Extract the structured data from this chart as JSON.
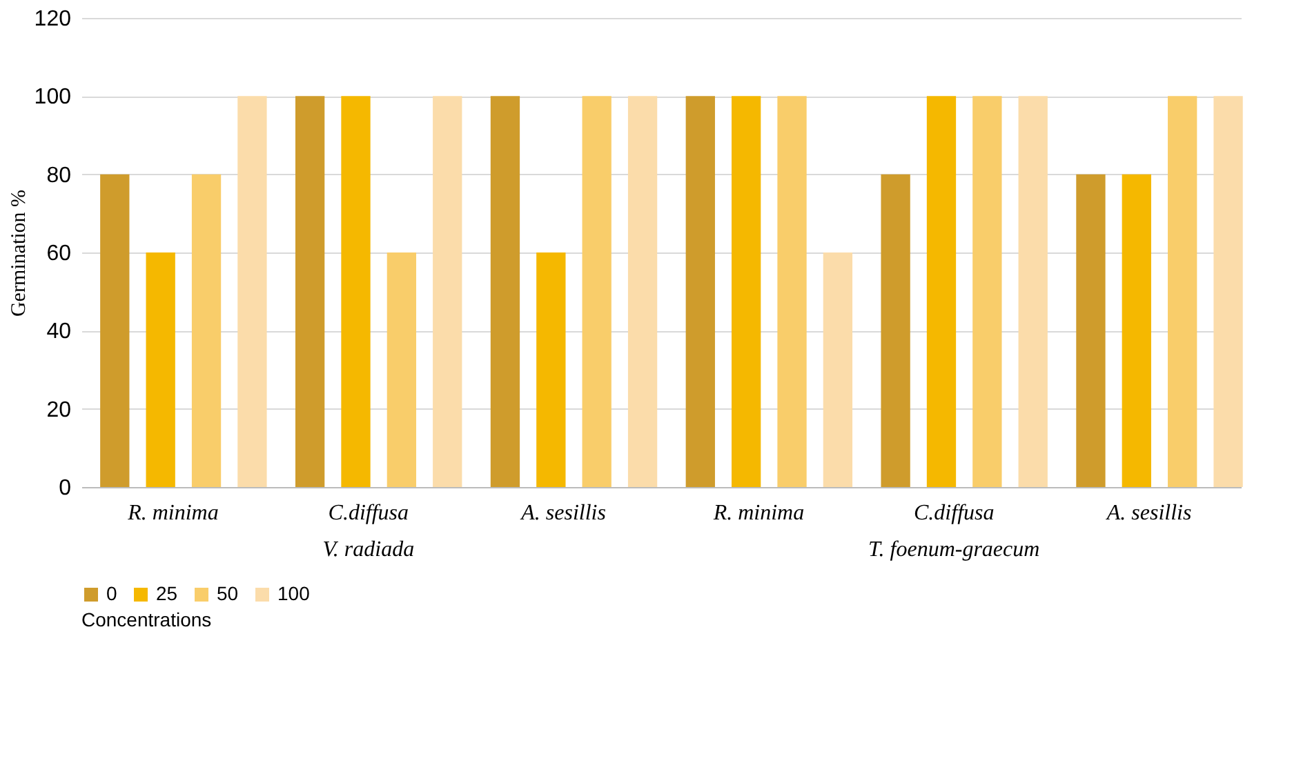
{
  "chart_data": {
    "type": "bar",
    "ylabel": "Germination %",
    "legend_title": "Concentrations",
    "categories": [
      "R. minima",
      "C.diffusa",
      "A. sesillis",
      "R. minima",
      "C.diffusa",
      "A. sesillis"
    ],
    "series": [
      {
        "name": "0",
        "color": "#cf9c2c",
        "values": [
          80,
          100,
          100,
          100,
          80,
          80
        ]
      },
      {
        "name": "25",
        "color": "#f5b800",
        "values": [
          60,
          100,
          60,
          100,
          100,
          80
        ]
      },
      {
        "name": "50",
        "color": "#f9cd6a",
        "values": [
          80,
          60,
          100,
          100,
          100,
          100
        ]
      },
      {
        "name": "100",
        "color": "#fbdcaa",
        "values": [
          100,
          100,
          100,
          60,
          100,
          100
        ]
      }
    ],
    "annotations": [
      "V. radiada",
      "T. foenum-graecum"
    ],
    "ylim": [
      0,
      120
    ],
    "yticks": [
      0,
      20,
      40,
      60,
      80,
      100,
      120
    ],
    "grid": "y",
    "legend": "bottom"
  }
}
